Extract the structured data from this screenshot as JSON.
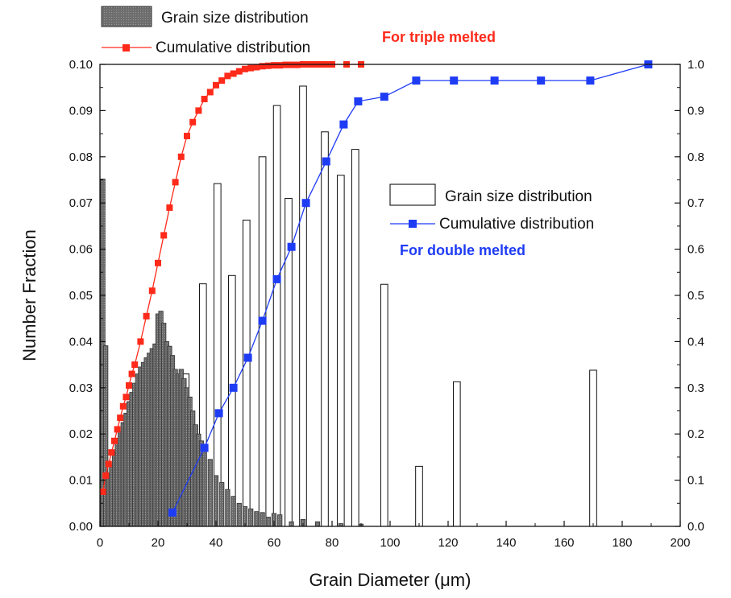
{
  "chart_data": {
    "type": "bar",
    "title": "",
    "xlabel": "Grain Diameter (μm)",
    "ylabel": "Number Fraction",
    "xlim": [
      0,
      200
    ],
    "ylim": [
      0,
      0.1
    ],
    "y2lim": [
      0,
      1.0
    ],
    "x_ticks": [
      "0",
      "20",
      "40",
      "60",
      "80",
      "100",
      "120",
      "140",
      "160",
      "180",
      "200"
    ],
    "y_ticks": [
      "0.00",
      "0.01",
      "0.02",
      "0.03",
      "0.04",
      "0.05",
      "0.06",
      "0.07",
      "0.08",
      "0.09",
      "0.10"
    ],
    "y2_ticks": [
      "0.0",
      "0.1",
      "0.2",
      "0.3",
      "0.4",
      "0.5",
      "0.6",
      "0.7",
      "0.8",
      "0.9",
      "1.0"
    ],
    "grid": false,
    "colors": {
      "triple_bar_fill": "#6b6b6b",
      "triple_cumulative": "#ff2a1a",
      "double_bar_fill": "#ffffff",
      "double_cumulative": "#1f3cf5"
    },
    "series": [
      {
        "name": "Grain size distribution",
        "group": "For triple melted",
        "kind": "bar",
        "axis": "left",
        "fill": "#6b6b6b",
        "bar_width": 1.5,
        "x": [
          1,
          2,
          3,
          4,
          5,
          6,
          7,
          8,
          9,
          10,
          11,
          12,
          13,
          14,
          15,
          16,
          17,
          18,
          19,
          20,
          21,
          22,
          23,
          24,
          25,
          26,
          27,
          28,
          29,
          30,
          31,
          32,
          33,
          34,
          35,
          36,
          38,
          40,
          42,
          44,
          46,
          48,
          50,
          52,
          54,
          56,
          58,
          60,
          62,
          66,
          70,
          75,
          83,
          90
        ],
        "values": [
          0.0752,
          0.0391,
          0.0115,
          0.0135,
          0.016,
          0.018,
          0.0205,
          0.0225,
          0.0245,
          0.027,
          0.029,
          0.031,
          0.033,
          0.0345,
          0.0355,
          0.0365,
          0.0375,
          0.0385,
          0.0395,
          0.046,
          0.0466,
          0.044,
          0.04,
          0.039,
          0.037,
          0.034,
          0.033,
          0.034,
          0.032,
          0.03,
          0.028,
          0.025,
          0.022,
          0.02,
          0.0185,
          0.017,
          0.0145,
          0.011,
          0.0095,
          0.008,
          0.0065,
          0.005,
          0.0043,
          0.0038,
          0.0032,
          0.003,
          0.002,
          0.0028,
          0.0025,
          0.001,
          0.0015,
          0.001,
          0.0006,
          0.0005
        ]
      },
      {
        "name": "Cumulative distribution",
        "group": "For triple melted",
        "kind": "line",
        "axis": "right",
        "color": "#ff2a1a",
        "x": [
          1,
          2,
          3,
          4,
          5,
          6,
          7,
          8,
          9,
          10,
          11,
          12,
          14,
          16,
          18,
          20,
          22,
          24,
          26,
          28,
          30,
          32,
          34,
          36,
          38,
          40,
          42,
          44,
          46,
          48,
          50,
          52,
          54,
          56,
          58,
          60,
          62,
          64,
          66,
          68,
          70,
          72,
          74,
          76,
          78,
          80,
          85,
          90
        ],
        "values": [
          0.075,
          0.11,
          0.135,
          0.16,
          0.185,
          0.21,
          0.235,
          0.26,
          0.28,
          0.305,
          0.33,
          0.35,
          0.4,
          0.455,
          0.51,
          0.57,
          0.63,
          0.69,
          0.745,
          0.8,
          0.845,
          0.875,
          0.9,
          0.925,
          0.94,
          0.955,
          0.965,
          0.975,
          0.98,
          0.985,
          0.99,
          0.992,
          0.994,
          0.996,
          0.997,
          0.998,
          0.998,
          0.999,
          0.999,
          0.999,
          1.0,
          1.0,
          1.0,
          1.0,
          1.0,
          1.0,
          1.0,
          1.0
        ]
      },
      {
        "name": "Grain size distribution",
        "group": "For double melted",
        "kind": "bar",
        "axis": "left",
        "fill": "#ffffff",
        "bar_width": 2.4,
        "x": [
          29.5,
          35.5,
          40.5,
          45.5,
          50.5,
          56,
          61,
          65,
          70,
          77.5,
          83,
          88,
          98,
          110,
          123,
          170
        ],
        "values": [
          0.033,
          0.0525,
          0.0742,
          0.0543,
          0.0663,
          0.08,
          0.0911,
          0.071,
          0.0953,
          0.0854,
          0.076,
          0.0816,
          0.0524,
          0.013,
          0.0313,
          0.0338
        ]
      },
      {
        "name": "Cumulative distribution",
        "group": "For double melted",
        "kind": "line",
        "axis": "right",
        "color": "#1f3cf5",
        "x": [
          25,
          36,
          41,
          46,
          51,
          56,
          61,
          66,
          71,
          78,
          84,
          89,
          98,
          109,
          122,
          136,
          152,
          169,
          189
        ],
        "values": [
          0.03,
          0.17,
          0.245,
          0.3,
          0.365,
          0.445,
          0.535,
          0.605,
          0.7,
          0.79,
          0.87,
          0.92,
          0.93,
          0.965,
          0.965,
          0.965,
          0.965,
          0.965,
          1.0
        ]
      }
    ],
    "legends": [
      {
        "placement": "top-left, outside plot",
        "entries": [
          "Grain size distribution",
          "Cumulative distribution"
        ],
        "annotation": "For triple melted"
      },
      {
        "placement": "center-right, inside plot",
        "entries": [
          "Grain size distribution",
          "Cumulative distribution"
        ],
        "annotation": "For double melted"
      }
    ]
  }
}
